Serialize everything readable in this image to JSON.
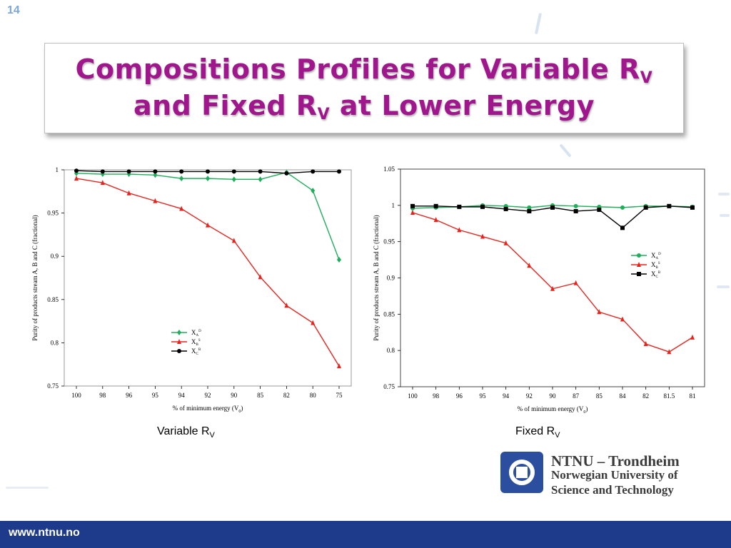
{
  "slide": {
    "number": "14",
    "title_line1": "Compositions Profiles for Variable R",
    "title_line1_sub": "V",
    "title_line2_pre": "and Fixed R",
    "title_line2_sub": "V",
    "title_line2_post": " at Lower Energy",
    "title_color": "#a0168c"
  },
  "captions": {
    "left": "Variable R",
    "left_sub": "V",
    "right": "Fixed R",
    "right_sub": "V"
  },
  "branding": {
    "org_line1": "NTNU – Trondheim",
    "org_line2": "Norwegian University of",
    "org_line3": "Science and Technology",
    "footer_url": "www.ntnu.no",
    "footer_color": "#1e3a8a",
    "logo_color": "#2b4f9e"
  },
  "chart_data": [
    {
      "type": "line",
      "ylabel": "Purity of products stream A, B and C (fractional)",
      "xlabel": "% of minimum energy (V",
      "xlabel_sub": "0",
      "xlabel_end": ")",
      "categories": [
        "100",
        "98",
        "96",
        "95",
        "94",
        "92",
        "90",
        "85",
        "82",
        "80",
        "75"
      ],
      "ylim": [
        0.75,
        1.0
      ],
      "yticks": [
        "0.75",
        "0.8",
        "0.85",
        "0.9",
        "0.95",
        "1"
      ],
      "grid": false,
      "legend_position": "lower-middle",
      "series": [
        {
          "name": "X",
          "sub": "A",
          "sup": "D",
          "color": "#1fae5a",
          "marker": "diamond",
          "values": [
            0.996,
            0.995,
            0.995,
            0.994,
            0.99,
            0.99,
            0.989,
            0.989,
            0.997,
            0.976,
            0.896
          ]
        },
        {
          "name": "X",
          "sub": "B",
          "sup": "S",
          "color": "#e8231d",
          "marker": "triangle",
          "values": [
            0.99,
            0.985,
            0.973,
            0.964,
            0.955,
            0.936,
            0.918,
            0.876,
            0.843,
            0.823,
            0.773
          ]
        },
        {
          "name": "X",
          "sub": "C",
          "sup": "B",
          "color": "#000000",
          "marker": "circle",
          "values": [
            0.999,
            0.998,
            0.998,
            0.998,
            0.998,
            0.998,
            0.998,
            0.998,
            0.996,
            0.998,
            0.998
          ]
        }
      ]
    },
    {
      "type": "line",
      "ylabel": "Purity of products stream A, B and C (fractional)",
      "xlabel": "% of minimum energy (V",
      "xlabel_sub": "0",
      "xlabel_end": ")",
      "categories": [
        "100",
        "98",
        "96",
        "95",
        "94",
        "92",
        "90",
        "87",
        "85",
        "84",
        "82",
        "81.5",
        "81"
      ],
      "ylim": [
        0.75,
        1.05
      ],
      "yticks": [
        "0.75",
        "0.8",
        "0.85",
        "0.9",
        "0.95",
        "1",
        "1.05"
      ],
      "grid": false,
      "legend_position": "right-middle",
      "series": [
        {
          "name": "X",
          "sub": "A",
          "sup": "D",
          "color": "#1fae5a",
          "marker": "circle",
          "values": [
            0.996,
            0.997,
            0.998,
            1.0,
            0.999,
            0.997,
            1.0,
            0.999,
            0.998,
            0.997,
            0.999,
            0.999,
            0.998
          ]
        },
        {
          "name": "X",
          "sub": "B",
          "sup": "S",
          "color": "#e8231d",
          "marker": "triangle",
          "values": [
            0.99,
            0.98,
            0.966,
            0.957,
            0.948,
            0.917,
            0.885,
            0.893,
            0.853,
            0.843,
            0.809,
            0.798,
            0.818
          ]
        },
        {
          "name": "X",
          "sub": "C",
          "sup": "B",
          "color": "#000000",
          "marker": "square",
          "values": [
            0.999,
            0.999,
            0.998,
            0.998,
            0.995,
            0.992,
            0.997,
            0.992,
            0.994,
            0.969,
            0.997,
            0.999,
            0.997
          ]
        }
      ]
    }
  ]
}
